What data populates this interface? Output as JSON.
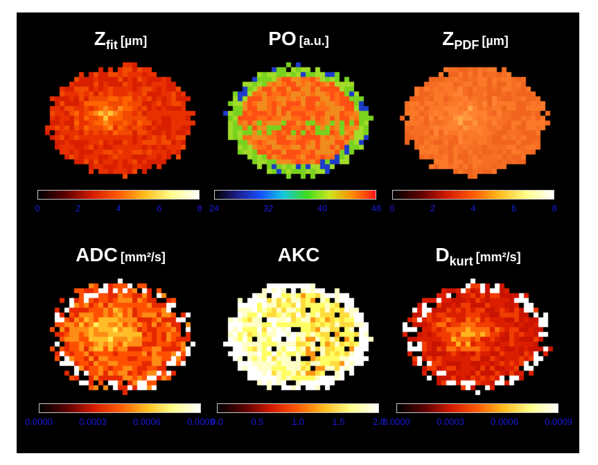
{
  "panels": [
    {
      "id": "zfit",
      "title": {
        "main": "Z",
        "sub": "fit",
        "unit": "[µm]"
      },
      "colormap": [
        "#000000",
        "#5a0000",
        "#d21a00",
        "#ff5a00",
        "#ffbe1e",
        "#ffff8c",
        "#ffffff"
      ],
      "map_palette": [
        "#d82000",
        "#e83000",
        "#f24a00",
        "#ff6400",
        "#ff8c1e",
        "#ffc83c"
      ],
      "ticks": [
        "0",
        "2",
        "4",
        "6",
        "8"
      ]
    },
    {
      "id": "po",
      "title": {
        "main": "PO",
        "sub": "",
        "unit": "[a.u.]"
      },
      "colormap": [
        "#000000",
        "#1e1e8c",
        "#1450ff",
        "#14c8dc",
        "#3cdc1e",
        "#c8e61e",
        "#ff8c00",
        "#ff1414"
      ],
      "map_palette": [
        "#ff6e14",
        "#f08c1e",
        "#ff5014",
        "#78d21e",
        "#a0dc28",
        "#1e3cc8"
      ],
      "ticks": [
        "24",
        "32",
        "40",
        "48"
      ]
    },
    {
      "id": "zpdf",
      "title": {
        "main": "Z",
        "sub": "PDF",
        "unit": "[µm]"
      },
      "colormap": [
        "#000000",
        "#5a0000",
        "#d21a00",
        "#ff5a00",
        "#ffbe1e",
        "#ffff8c",
        "#ffffff"
      ],
      "map_palette": [
        "#f0641e",
        "#f56e23",
        "#fa7828",
        "#ff8232",
        "#ff963c",
        "#ffaa46"
      ],
      "ticks": [
        "0",
        "2",
        "4",
        "6",
        "8"
      ]
    },
    {
      "id": "adc",
      "title": {
        "main": "ADC",
        "sub": "",
        "unit": "[mm²/s]"
      },
      "colormap": [
        "#000000",
        "#5a0000",
        "#d21a00",
        "#ff5a00",
        "#ffbe1e",
        "#ffff8c",
        "#ffffff"
      ],
      "map_palette": [
        "#e62800",
        "#ff5000",
        "#ff8c14",
        "#ffbe28",
        "#fff05a",
        "#ffffff"
      ],
      "ticks": [
        "0.0000",
        "0.0003",
        "0.0006",
        "0.0009"
      ]
    },
    {
      "id": "akc",
      "title": {
        "main": "AKC",
        "sub": "",
        "unit": ""
      },
      "colormap": [
        "#000000",
        "#5a0000",
        "#d21a00",
        "#ff5a00",
        "#ffbe1e",
        "#ffff8c",
        "#ffffff"
      ],
      "map_palette": [
        "#ffffff",
        "#ffffc8",
        "#ffff64",
        "#ffdc3c",
        "#ff9614",
        "#e63c00"
      ],
      "ticks": [
        "0.0",
        "0.5",
        "1.0",
        "1.5",
        "2.0"
      ]
    },
    {
      "id": "dkurt",
      "title": {
        "main": "D",
        "sub": "kurt",
        "unit": "[mm²/s]"
      },
      "colormap": [
        "#000000",
        "#5a0000",
        "#d21a00",
        "#ff5a00",
        "#ffbe1e",
        "#ffff8c",
        "#ffffff"
      ],
      "map_palette": [
        "#c81400",
        "#dc1e00",
        "#f03c00",
        "#ff6e0a",
        "#ffb41e",
        "#ffffff"
      ],
      "ticks": [
        "0.0000",
        "0.0003",
        "0.0006",
        "0.0009"
      ]
    }
  ]
}
